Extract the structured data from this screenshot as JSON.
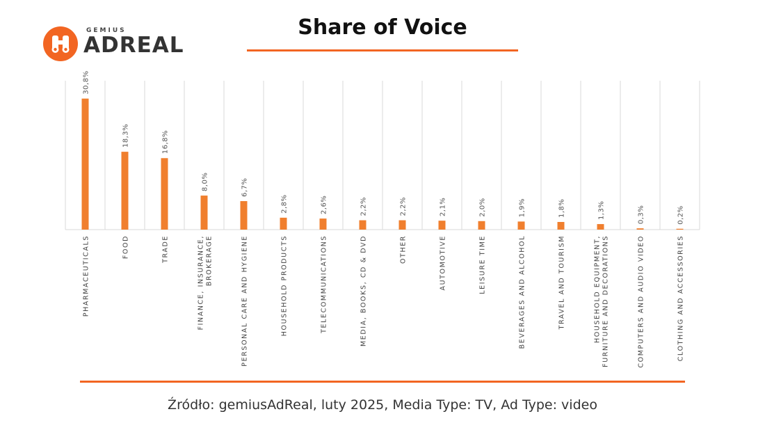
{
  "title": "Share of Voice",
  "logo": {
    "small": "GEMIUS",
    "big": "ADREAL",
    "icon": "binoculars-icon"
  },
  "source": "Źródło: gemiusAdReal, luty 2025, Media Type: TV, Ad Type: video",
  "colors": {
    "accent": "#f26522",
    "bar": "#f07f2e",
    "grid": "#d9d9d9"
  },
  "chart_data": {
    "type": "bar",
    "categories": [
      [
        "PHARMACEUTICALS"
      ],
      [
        "FOOD"
      ],
      [
        "TRADE"
      ],
      [
        "FINANCE, INSURANCE,",
        "BROKERAGE"
      ],
      [
        "PERSONAL CARE AND HYGIENE"
      ],
      [
        "HOUSEHOLD PRODUCTS"
      ],
      [
        "TELECOMMUNICATIONS"
      ],
      [
        "MEDIA, BOOKS, CD & DVD"
      ],
      [
        "OTHER"
      ],
      [
        "AUTOMOTIVE"
      ],
      [
        "LEISURE TIME"
      ],
      [
        "BEVERAGES AND ALCOHOL"
      ],
      [
        "TRAVEL AND TOURISM"
      ],
      [
        "HOUSEHOLD EQUIPMENT,",
        "FURNITURE AND DECORATIONS"
      ],
      [
        "COMPUTERS AND AUDIO VIDEO"
      ],
      [
        "CLOTHING AND ACCESSORIES"
      ]
    ],
    "values": [
      30.8,
      18.3,
      16.8,
      8.0,
      6.7,
      2.8,
      2.6,
      2.2,
      2.2,
      2.1,
      2.0,
      1.9,
      1.8,
      1.3,
      0.3,
      0.2
    ],
    "value_labels": [
      "30,8%",
      "18,3%",
      "16,8%",
      "8,0%",
      "6,7%",
      "2,8%",
      "2,6%",
      "2,2%",
      "2,2%",
      "2,1%",
      "2,0%",
      "1,9%",
      "1,8%",
      "1,3%",
      "0,3%",
      "0,2%"
    ],
    "ylim": [
      0,
      35
    ],
    "grid": "vertical",
    "legend": "none"
  }
}
